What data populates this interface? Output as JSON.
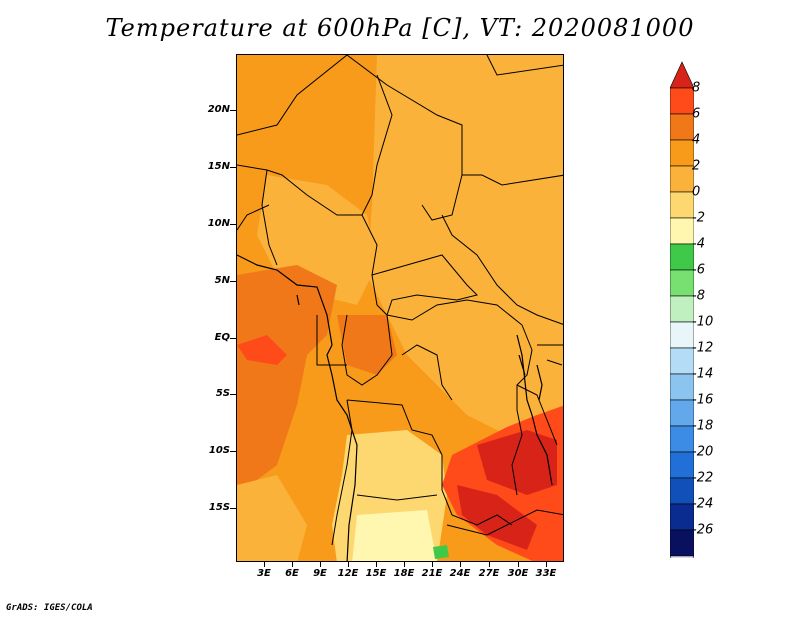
{
  "title": "Temperature at 600hPa [C], VT: 2020081000",
  "credit": "GrADS: IGES/COLA",
  "map": {
    "lat_labels": [
      "20N",
      "15N",
      "10N",
      "5N",
      "EQ",
      "5S",
      "10S",
      "15S"
    ],
    "lon_labels": [
      "3E",
      "6E",
      "9E",
      "12E",
      "15E",
      "18E",
      "21E",
      "24E",
      "27E",
      "30E",
      "33E"
    ]
  },
  "colorbar": {
    "levels": [
      "8",
      "6",
      "4",
      "2",
      "0",
      "-2",
      "-4",
      "-6",
      "-8",
      "-10",
      "-12",
      "-14",
      "-16",
      "-18",
      "-20",
      "-22",
      "-24",
      "-26"
    ],
    "colors": [
      "#d82418",
      "#ff4a1a",
      "#f07818",
      "#f89a1a",
      "#fbb23a",
      "#fdd870",
      "#fff6b0",
      "#40c848",
      "#78e070",
      "#c0f0c0",
      "#e8f6fa",
      "#b4dcf6",
      "#8cc4f0",
      "#64a8ec",
      "#3c8ce6",
      "#2070d8",
      "#1050b8",
      "#0a2c90",
      "#0a1060",
      "#dcdcf0"
    ]
  }
}
